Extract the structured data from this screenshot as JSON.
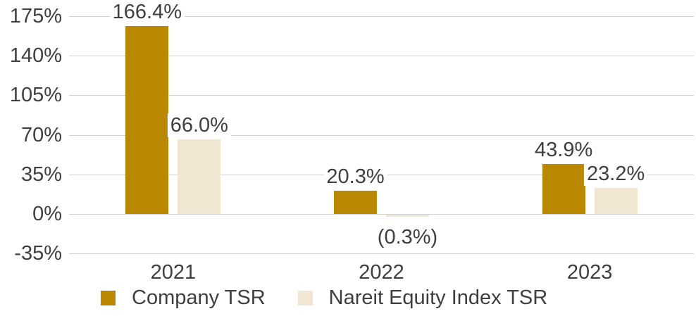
{
  "chart_data": {
    "type": "bar",
    "title": "",
    "categories": [
      "2021",
      "2022",
      "2023"
    ],
    "series": [
      {
        "name": "Company TSR",
        "color": "#B98700",
        "values": [
          166.4,
          20.3,
          43.9
        ],
        "labels": [
          "166.4%",
          "20.3%",
          "43.9%"
        ]
      },
      {
        "name": "Nareit Equity Index TSR",
        "color": "#F0E6D2",
        "values": [
          66.0,
          -0.3,
          23.2
        ],
        "labels": [
          "66.0%",
          "(0.3%)",
          "23.2%"
        ]
      }
    ],
    "y_axis": {
      "ticks": [
        "175%",
        "140%",
        "105%",
        "70%",
        "35%",
        "0%",
        "-35%"
      ],
      "tick_values": [
        175,
        140,
        105,
        70,
        35,
        0,
        -35
      ],
      "max": 175,
      "min": -35
    },
    "grid": true,
    "legend_position": "bottom",
    "colors": {
      "text": "#3F3F3F",
      "gridline": "#D2D2D2",
      "background": "#FFFFFF"
    }
  }
}
